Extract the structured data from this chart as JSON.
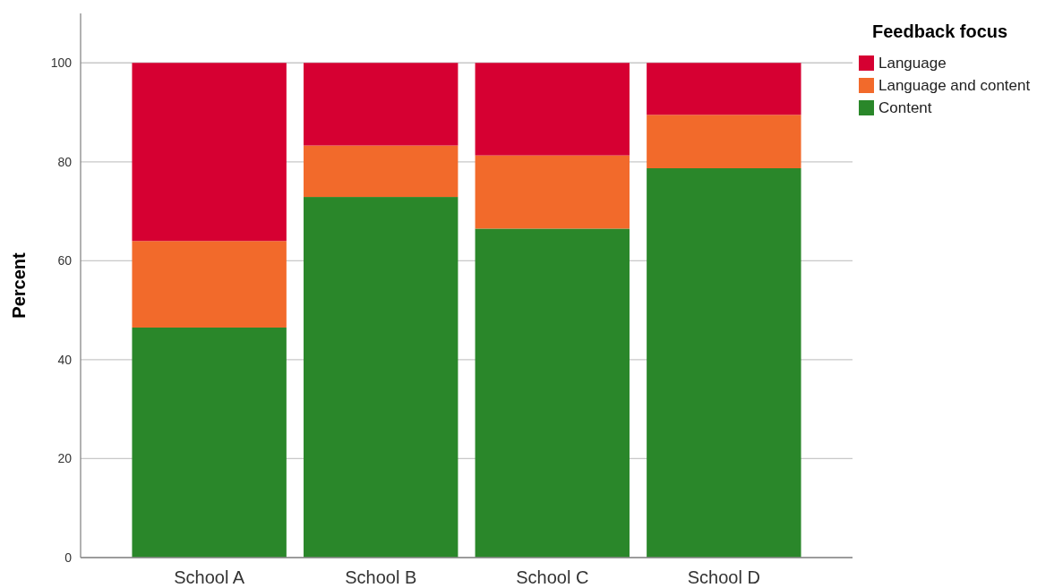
{
  "chart_data": {
    "type": "bar",
    "stacked": true,
    "ylabel": "Percent",
    "legend_title": "Feedback focus",
    "legend": "top right",
    "categories": [
      "School A",
      "School B",
      "School C",
      "School D"
    ],
    "series": [
      {
        "name": "Content",
        "color": "#2a872a",
        "values": [
          46.5,
          72.9,
          66.5,
          78.7
        ]
      },
      {
        "name": "Language and content",
        "color": "#f26a2b",
        "values": [
          17.5,
          10.4,
          14.8,
          10.8
        ]
      },
      {
        "name": "Language",
        "color": "#d60032",
        "values": [
          36.0,
          16.7,
          18.7,
          10.5
        ]
      }
    ],
    "ylim": [
      0,
      110
    ],
    "yticks": [
      0,
      20,
      40,
      60,
      80,
      100
    ],
    "grid": "y"
  }
}
